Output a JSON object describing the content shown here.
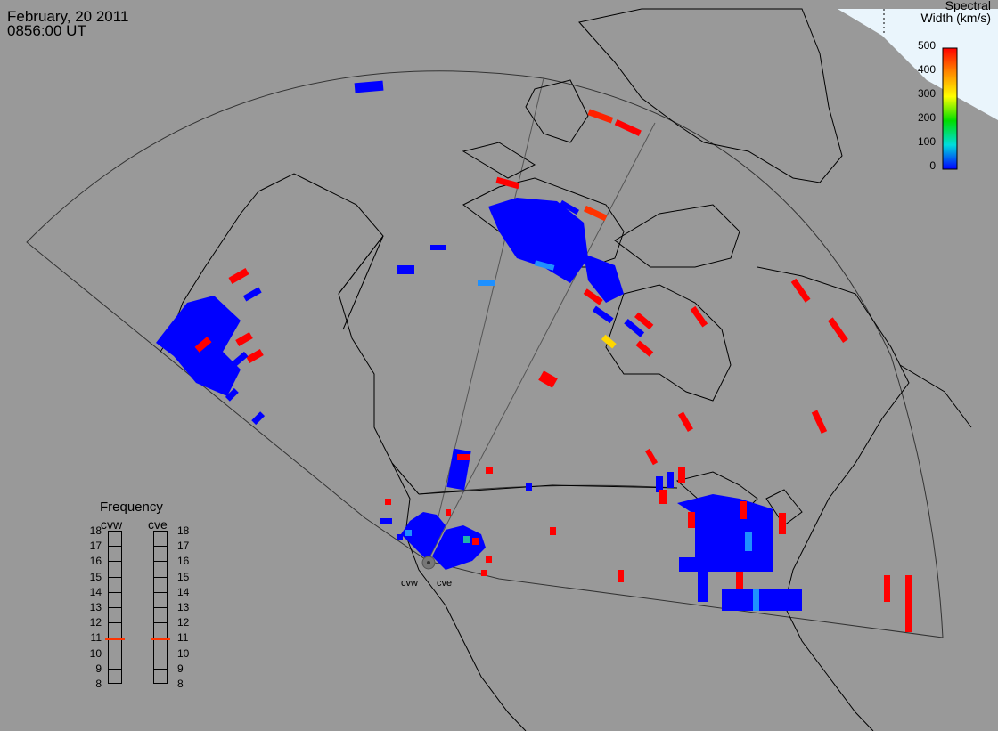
{
  "header": {
    "date": "February, 20 2011",
    "time": "0856:00 UT"
  },
  "colorbar": {
    "title_line1": "Spectral",
    "title_line2": "Width (km/s)",
    "ticks": [
      "500",
      "400",
      "300",
      "200",
      "100",
      "0"
    ],
    "max_value": 500,
    "min_value": 0,
    "colors": [
      "#ff0000",
      "#ff8800",
      "#ffff00",
      "#00dd00",
      "#00dddd",
      "#0000ff"
    ]
  },
  "frequency_panel": {
    "title": "Frequency",
    "radars": [
      {
        "label": "cvw",
        "selected_mhz": 10.9
      },
      {
        "label": "cve",
        "selected_mhz": 10.9
      }
    ],
    "ticks": [
      "18",
      "17",
      "16",
      "15",
      "14",
      "13",
      "12",
      "11",
      "10",
      "9",
      "8"
    ],
    "marker_color": "#ff3300"
  },
  "radar_sites": {
    "cvw_label": "cvw",
    "cve_label": "cve"
  },
  "colors": {
    "background": "#999999",
    "coastline": "#000000",
    "low_width": "#0000ff",
    "high_width": "#ff0000",
    "day_region": "#e8f4fb"
  }
}
